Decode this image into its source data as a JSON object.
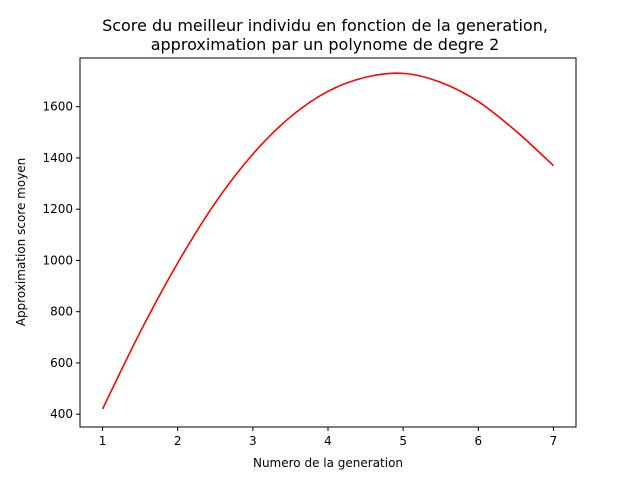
{
  "chart_data": {
    "type": "line",
    "title": "Score du meilleur individu en fonction de la generation,",
    "subtitle": "approximation par un polynome de degre 2",
    "xlabel": "Numero de la generation",
    "ylabel": "Approximation score moyen",
    "xlim": [
      0.7,
      7.3
    ],
    "ylim": [
      350,
      1790
    ],
    "x_ticks": [
      1,
      2,
      3,
      4,
      5,
      6,
      7
    ],
    "y_ticks": [
      400,
      600,
      800,
      1000,
      1200,
      1400,
      1600
    ],
    "grid": false,
    "series": [
      {
        "x": [
          1,
          1.5,
          2,
          2.5,
          3,
          3.5,
          4,
          4.5,
          5,
          5.5,
          6,
          6.5,
          7
        ],
        "values": [
          420,
          720,
          990,
          1225,
          1415,
          1560,
          1660,
          1715,
          1730,
          1695,
          1620,
          1505,
          1370
        ],
        "color": "#ff0000"
      }
    ]
  }
}
